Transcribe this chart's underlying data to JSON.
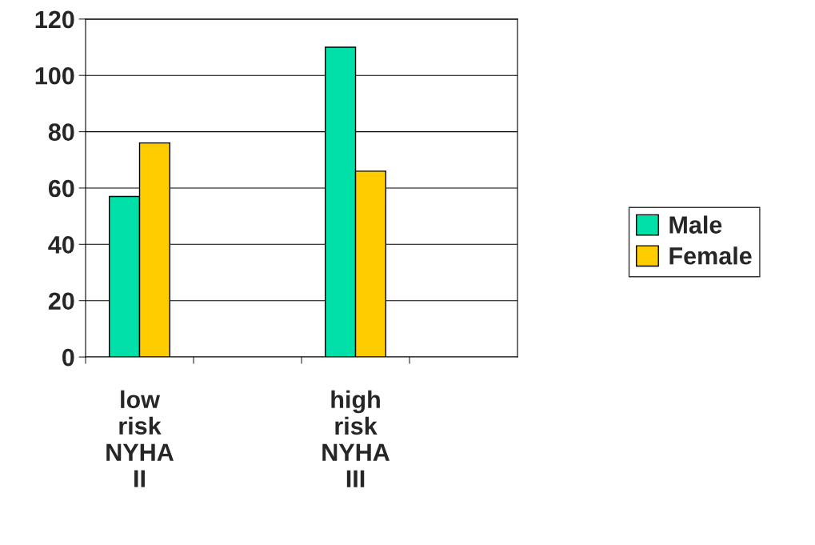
{
  "chart_data": {
    "type": "bar",
    "categories": [
      "low\nrisk\nNYHA\nII",
      null,
      "high\nrisk\nNYHA\nIII",
      null
    ],
    "series": [
      {
        "name": "Male",
        "color": "#00e0a8",
        "values": [
          57,
          null,
          110,
          null
        ]
      },
      {
        "name": "Female",
        "color": "#ffcc00",
        "values": [
          76,
          null,
          66,
          null
        ]
      }
    ],
    "ylim": [
      0,
      120
    ],
    "yticks": [
      0,
      20,
      40,
      60,
      80,
      100,
      120
    ],
    "grid": "y",
    "legend": "right"
  }
}
